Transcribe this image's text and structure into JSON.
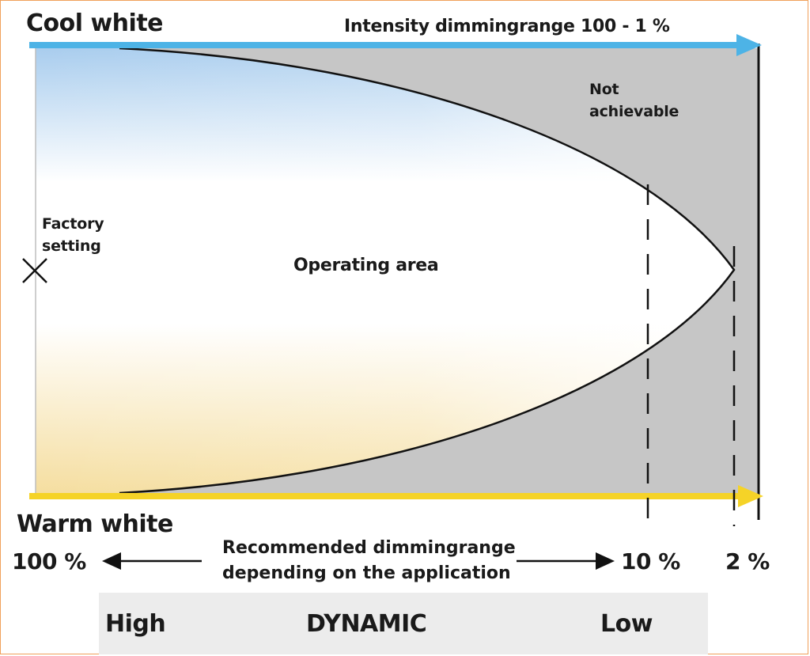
{
  "labels": {
    "cool_white": "Cool white",
    "intensity": "Intensity dimmingrange 100 - 1 %",
    "not_achievable_line1": "Not",
    "not_achievable_line2": "achievable",
    "factory_line1": "Factory",
    "factory_line2": "setting",
    "operating_area": "Operating area",
    "warm_white": "Warm white",
    "pct_100": "100 %",
    "pct_10": "10 %",
    "pct_2": "2 %",
    "recommended_line1": "Recommended dimmingrange",
    "recommended_line2": "depending on the application"
  },
  "dynamic_bar": {
    "high": "High",
    "dynamic": "DYNAMIC",
    "low": "Low"
  },
  "colors": {
    "cool_arrow": "#4db3e6",
    "warm_arrow": "#f5d327",
    "not_achievable_fill": "#c6c6c6",
    "cool_tint": "#a9cdee",
    "warm_tint": "#f7e3a8"
  }
}
